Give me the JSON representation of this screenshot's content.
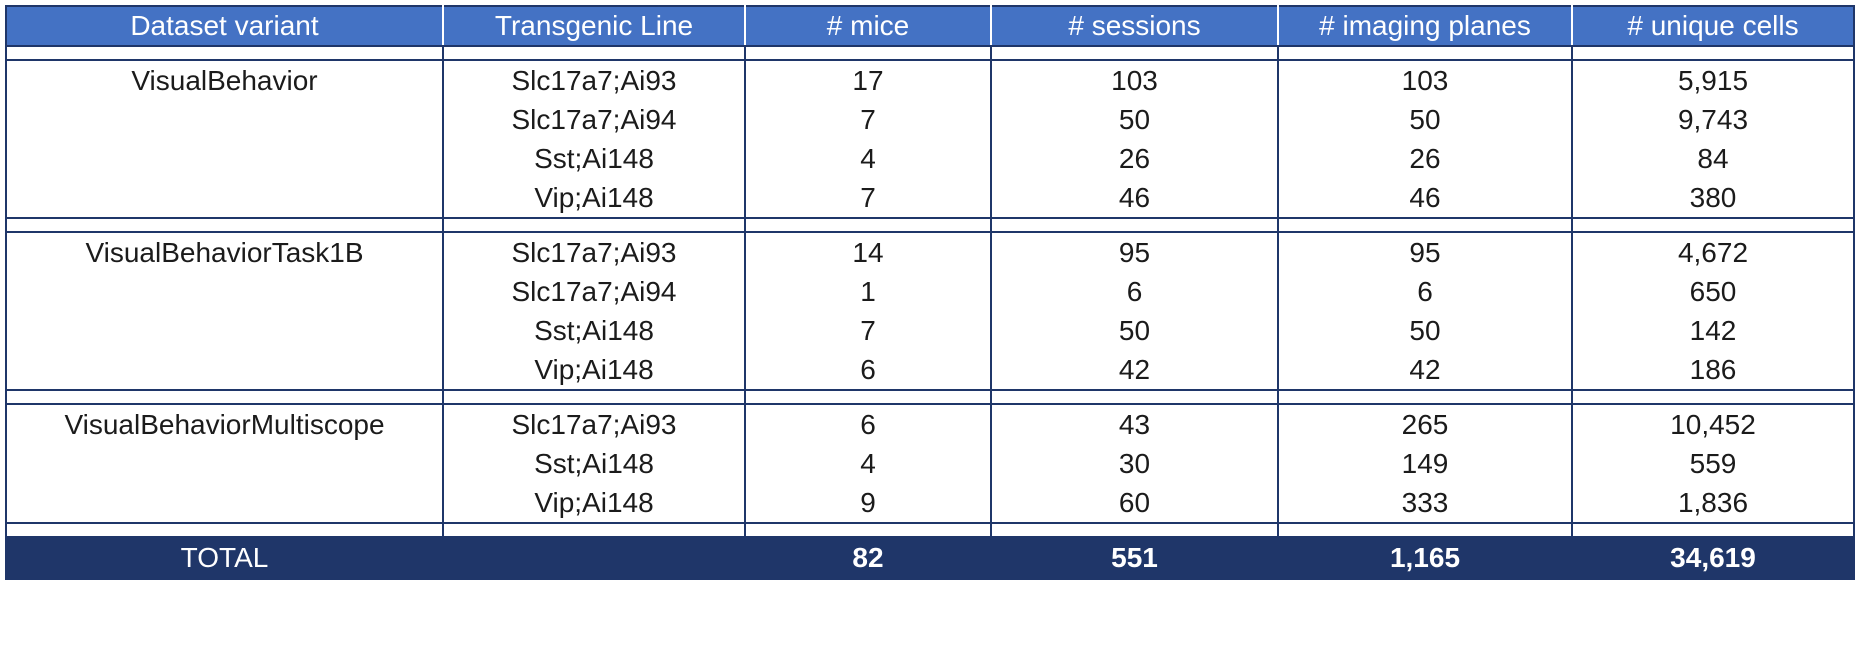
{
  "headers": [
    "Dataset variant",
    "Transgenic Line",
    "# mice",
    "# sessions",
    "# imaging planes",
    "# unique cells"
  ],
  "groups": [
    {
      "variant": "VisualBehavior",
      "rows": [
        {
          "line": "Slc17a7;Ai93",
          "mice": "17",
          "sessions": "103",
          "planes": "103",
          "cells": "5,915"
        },
        {
          "line": "Slc17a7;Ai94",
          "mice": "7",
          "sessions": "50",
          "planes": "50",
          "cells": "9,743"
        },
        {
          "line": "Sst;Ai148",
          "mice": "4",
          "sessions": "26",
          "planes": "26",
          "cells": "84"
        },
        {
          "line": "Vip;Ai148",
          "mice": "7",
          "sessions": "46",
          "planes": "46",
          "cells": "380"
        }
      ]
    },
    {
      "variant": "VisualBehaviorTask1B",
      "rows": [
        {
          "line": "Slc17a7;Ai93",
          "mice": "14",
          "sessions": "95",
          "planes": "95",
          "cells": "4,672"
        },
        {
          "line": "Slc17a7;Ai94",
          "mice": "1",
          "sessions": "6",
          "planes": "6",
          "cells": "650"
        },
        {
          "line": "Sst;Ai148",
          "mice": "7",
          "sessions": "50",
          "planes": "50",
          "cells": "142"
        },
        {
          "line": "Vip;Ai148",
          "mice": "6",
          "sessions": "42",
          "planes": "42",
          "cells": "186"
        }
      ]
    },
    {
      "variant": "VisualBehaviorMultiscope",
      "rows": [
        {
          "line": "Slc17a7;Ai93",
          "mice": "6",
          "sessions": "43",
          "planes": "265",
          "cells": "10,452"
        },
        {
          "line": "Sst;Ai148",
          "mice": "4",
          "sessions": "30",
          "planes": "149",
          "cells": "559"
        },
        {
          "line": "Vip;Ai148",
          "mice": "9",
          "sessions": "60",
          "planes": "333",
          "cells": "1,836"
        }
      ]
    }
  ],
  "total": {
    "label": "TOTAL",
    "line": "",
    "mice": "82",
    "sessions": "551",
    "planes": "1,165",
    "cells": "34,619"
  },
  "colors": {
    "header_bg": "#4472c4",
    "footer_bg": "#1f3669",
    "border": "#1f3669"
  }
}
